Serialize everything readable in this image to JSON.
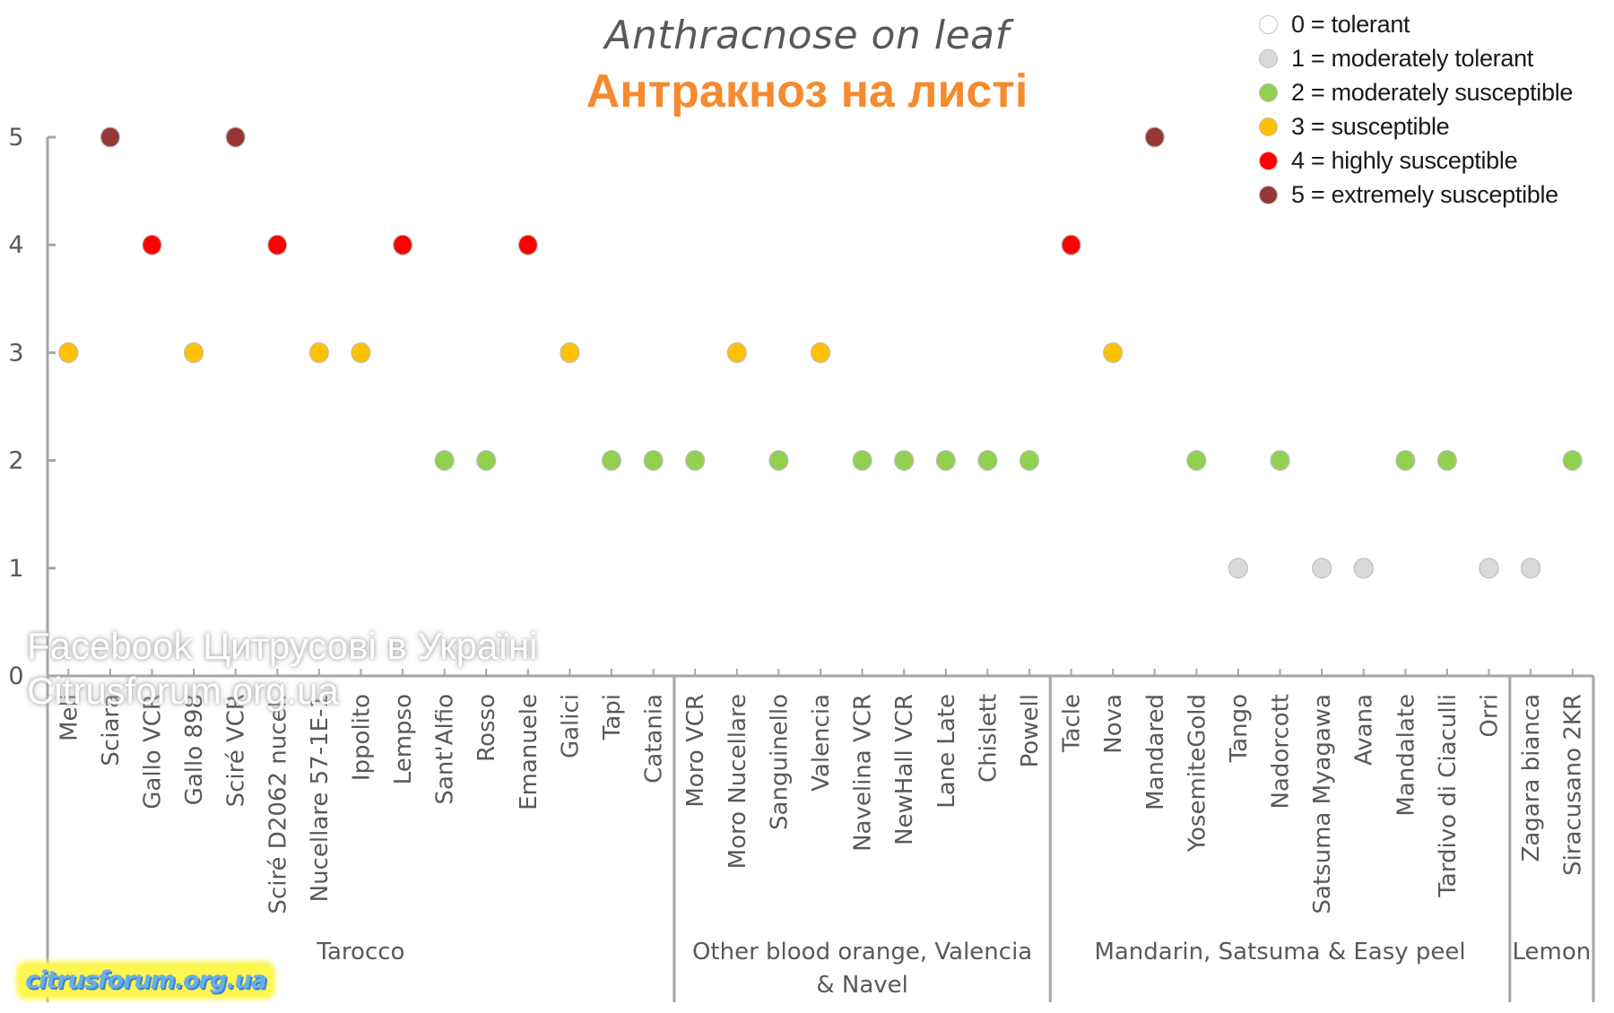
{
  "chart_data": {
    "type": "scatter",
    "title": "Anthracnose on leaf",
    "subtitle": "Антракноз на листі",
    "xlabel": "",
    "ylabel": "",
    "ylim": [
      0,
      5
    ],
    "yticks": [
      "0",
      "1",
      "2",
      "3",
      "4",
      "5"
    ],
    "grid": false,
    "legend_position": "top-right",
    "legend": [
      {
        "value": 0,
        "label": "0 = tolerant",
        "color": "#ffffff"
      },
      {
        "value": 1,
        "label": "1 = moderately tolerant",
        "color": "#d9d9d9"
      },
      {
        "value": 2,
        "label": "2 = moderately susceptible",
        "color": "#92d050"
      },
      {
        "value": 3,
        "label": "3 = susceptible",
        "color": "#ffc000"
      },
      {
        "value": 4,
        "label": "4 = highly susceptible",
        "color": "#ff0000"
      },
      {
        "value": 5,
        "label": "5 = extremely susceptible",
        "color": "#953735"
      }
    ],
    "groups": [
      {
        "name": "Tarocco",
        "categories": [
          "Meli",
          "Sciara",
          "Gallo VCR",
          "Gallo 898",
          "Sciré VCR",
          "Sciré D2062 nucel.",
          "Nucellare 57-1E-1",
          "Ippolito",
          "Lempso",
          "Sant'Alfio",
          "Rosso",
          "Emanuele",
          "Galici",
          "Tapi",
          "Catania"
        ],
        "values": [
          3,
          5,
          4,
          3,
          5,
          4,
          3,
          3,
          4,
          2,
          2,
          4,
          3,
          2,
          2
        ]
      },
      {
        "name": "Other blood orange, Valencia & Navel",
        "categories": [
          "Moro VCR",
          "Moro Nucellare",
          "Sanguinello",
          "Valencia",
          "Navelina VCR",
          "NewHall VCR",
          "Lane Late",
          "Chislett",
          "Powell"
        ],
        "values": [
          2,
          3,
          2,
          3,
          2,
          2,
          2,
          2,
          2
        ]
      },
      {
        "name": "Mandarin, Satsuma & Easy peel",
        "categories": [
          "Tacle",
          "Nova",
          "Mandared",
          "YosemiteGold",
          "Tango",
          "Nadorcott",
          "Satsuma Myagawa",
          "Avana",
          "Mandalate",
          "Tardivo di Ciaculli",
          "Orri"
        ],
        "values": [
          4,
          3,
          5,
          2,
          1,
          2,
          1,
          1,
          2,
          2,
          1
        ]
      },
      {
        "name": "Lemon",
        "categories": [
          "Zagara bianca",
          "Siracusano 2KR"
        ],
        "values": [
          1,
          2
        ]
      }
    ]
  },
  "watermarks": {
    "line1": "Facebook Цитрусові в Україні",
    "line2": "Citrusforum.org.ua",
    "badge": "citrusforum.org.ua"
  },
  "style": {
    "axis_color": "#a6a6a6",
    "tick_label_color": "#595959",
    "marker_border": "#bfbfbf"
  }
}
